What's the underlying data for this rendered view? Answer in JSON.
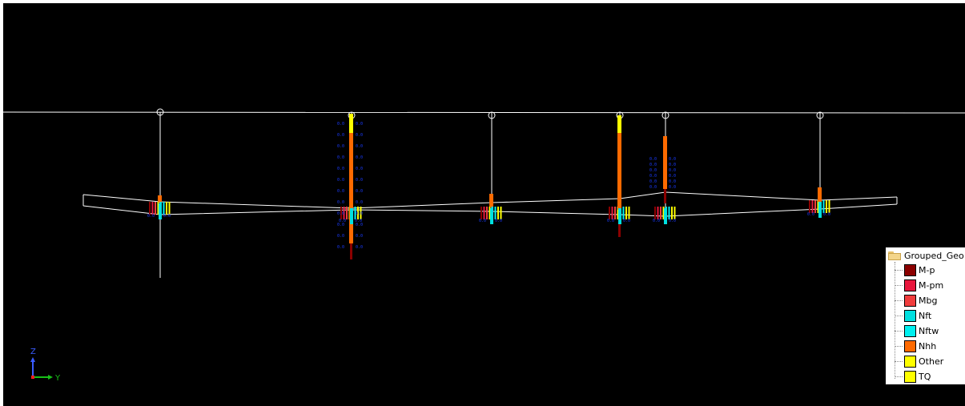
{
  "legend": {
    "title": "Grouped_Geo",
    "items": [
      {
        "label": "M-p",
        "color": "#8b0000"
      },
      {
        "label": "M-pm",
        "color": "#e8163c"
      },
      {
        "label": "Mbg",
        "color": "#f03c3c"
      },
      {
        "label": "Nft",
        "color": "#00e0e0"
      },
      {
        "label": "Nftw",
        "color": "#00f0f0"
      },
      {
        "label": "Nhh",
        "color": "#ff6a00"
      },
      {
        "label": "Other",
        "color": "#ffff00"
      },
      {
        "label": "TQ",
        "color": "#ffff00"
      }
    ]
  },
  "axes": {
    "vertical_label": "Z",
    "horizontal_label": "Y"
  },
  "viewport": {
    "background": "#000000",
    "geometry_color": "#ffffff",
    "value_label_color": "#1a3cff",
    "value_label_text": "0.0"
  }
}
